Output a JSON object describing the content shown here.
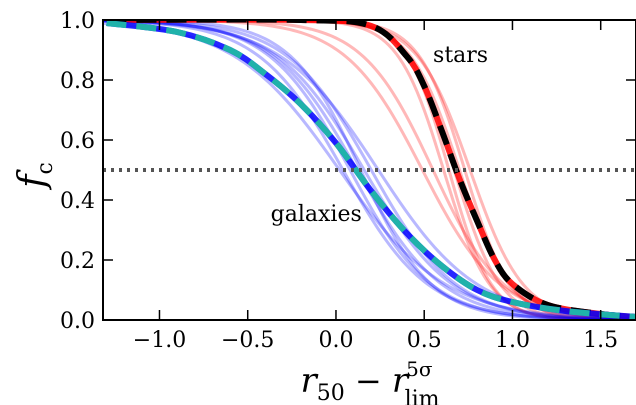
{
  "chart_data": {
    "type": "line",
    "title": "",
    "xlabel": {
      "base": "r",
      "sub1": "50",
      "minus": " − ",
      "base2": "r",
      "sup": "5σ",
      "sub2": "lim"
    },
    "ylabel": {
      "base": "f",
      "sub": "c"
    },
    "xlim": [
      -1.32,
      1.7
    ],
    "ylim": [
      0.0,
      1.0
    ],
    "x_ticks": [
      -1.0,
      -0.5,
      0.0,
      0.5,
      1.0,
      1.5
    ],
    "x_tick_labels": [
      "−1.0",
      "−0.5",
      "0.0",
      "0.5",
      "1.0",
      "1.5"
    ],
    "y_ticks": [
      0.0,
      0.2,
      0.4,
      0.6,
      0.8,
      1.0
    ],
    "y_tick_labels": [
      "0.0",
      "0.2",
      "0.4",
      "0.6",
      "0.8",
      "1.0"
    ],
    "grid": false,
    "reference_line": {
      "y": 0.5,
      "style": "dotted",
      "color": "#555555"
    },
    "annotations": [
      {
        "text": "stars",
        "x": 0.55,
        "y": 0.86
      },
      {
        "text": "galaxies",
        "x": -0.37,
        "y": 0.33
      }
    ],
    "colors": {
      "stars": "#ff0000",
      "galaxies": "#0000ff",
      "stars_mean": "#000000",
      "galaxies_mean": "#20b2aa"
    },
    "series": [
      {
        "group": "stars",
        "role": "mean",
        "style": "dashed",
        "points": [
          [
            -1.3,
            1.0
          ],
          [
            -0.2,
            1.0
          ],
          [
            0.2,
            0.98
          ],
          [
            0.4,
            0.88
          ],
          [
            0.5,
            0.78
          ],
          [
            0.6,
            0.63
          ],
          [
            0.7,
            0.47
          ],
          [
            0.8,
            0.33
          ],
          [
            0.9,
            0.2
          ],
          [
            1.0,
            0.12
          ],
          [
            1.2,
            0.05
          ],
          [
            1.5,
            0.02
          ],
          [
            1.7,
            0.01
          ]
        ]
      },
      {
        "group": "galaxies",
        "role": "mean",
        "style": "dashed",
        "points": [
          [
            -1.3,
            0.99
          ],
          [
            -0.9,
            0.96
          ],
          [
            -0.6,
            0.9
          ],
          [
            -0.4,
            0.82
          ],
          [
            -0.2,
            0.72
          ],
          [
            0.0,
            0.59
          ],
          [
            0.2,
            0.43
          ],
          [
            0.4,
            0.29
          ],
          [
            0.6,
            0.18
          ],
          [
            0.8,
            0.1
          ],
          [
            1.0,
            0.06
          ],
          [
            1.3,
            0.03
          ],
          [
            1.7,
            0.01
          ]
        ]
      },
      {
        "group": "stars",
        "role": "realization",
        "shift": -0.06,
        "scale": 0.13
      },
      {
        "group": "stars",
        "role": "realization",
        "shift": -0.03,
        "scale": 0.12
      },
      {
        "group": "stars",
        "role": "realization",
        "shift": 0.0,
        "scale": 0.13
      },
      {
        "group": "stars",
        "role": "realization",
        "shift": 0.03,
        "scale": 0.14
      },
      {
        "group": "stars",
        "role": "realization",
        "shift": 0.06,
        "scale": 0.13
      },
      {
        "group": "stars",
        "role": "realization",
        "shift": -0.12,
        "scale": 0.2
      },
      {
        "group": "stars",
        "role": "realization",
        "shift": -0.18,
        "scale": 0.22
      },
      {
        "group": "stars",
        "role": "realization",
        "shift": 0.09,
        "scale": 0.15
      },
      {
        "group": "galaxies",
        "role": "realization",
        "shift": -0.08,
        "scale": 0.24
      },
      {
        "group": "galaxies",
        "role": "realization",
        "shift": -0.04,
        "scale": 0.23
      },
      {
        "group": "galaxies",
        "role": "realization",
        "shift": 0.0,
        "scale": 0.24
      },
      {
        "group": "galaxies",
        "role": "realization",
        "shift": 0.04,
        "scale": 0.25
      },
      {
        "group": "galaxies",
        "role": "realization",
        "shift": 0.08,
        "scale": 0.24
      },
      {
        "group": "galaxies",
        "role": "realization",
        "shift": -0.1,
        "scale": 0.3
      },
      {
        "group": "galaxies",
        "role": "realization",
        "shift": 0.12,
        "scale": 0.28
      },
      {
        "group": "galaxies",
        "role": "realization",
        "shift": 0.02,
        "scale": 0.2
      }
    ]
  }
}
